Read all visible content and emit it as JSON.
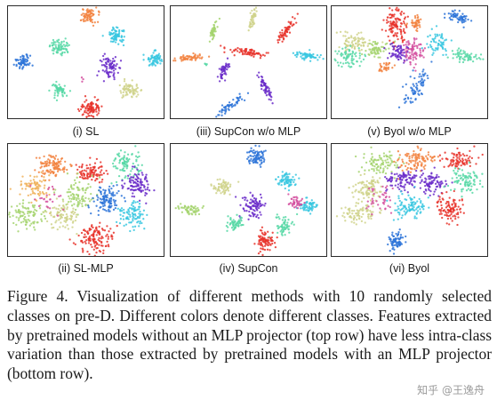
{
  "figure": {
    "panels": [
      {
        "id": "sl",
        "label": "(i) SL"
      },
      {
        "id": "supcon-womlp",
        "label": "(iii) SupCon w/o MLP"
      },
      {
        "id": "byol-womlp",
        "label": "(v) Byol w/o MLP"
      },
      {
        "id": "sl-mlp",
        "label": "(ii) SL-MLP"
      },
      {
        "id": "supcon",
        "label": "(iv) SupCon"
      },
      {
        "id": "byol",
        "label": "(vi) Byol"
      }
    ],
    "class_colors": [
      "#e8322a",
      "#f2833f",
      "#a5d36e",
      "#57d8a6",
      "#38c7e0",
      "#2b73d8",
      "#6a2bc9",
      "#d44f9f",
      "#cfd28a",
      "#f0b25b"
    ]
  },
  "caption": {
    "text": "Figure 4.  Visualization of different methods with 10 randomly selected classes on pre-D. Different colors denote different classes. Features extracted by pretrained models without an MLP projector (top row) have less intra-class variation than those extracted by pretrained models with an MLP projector (bottom row)."
  },
  "watermark": {
    "text": "知乎 @王逸舟"
  }
}
